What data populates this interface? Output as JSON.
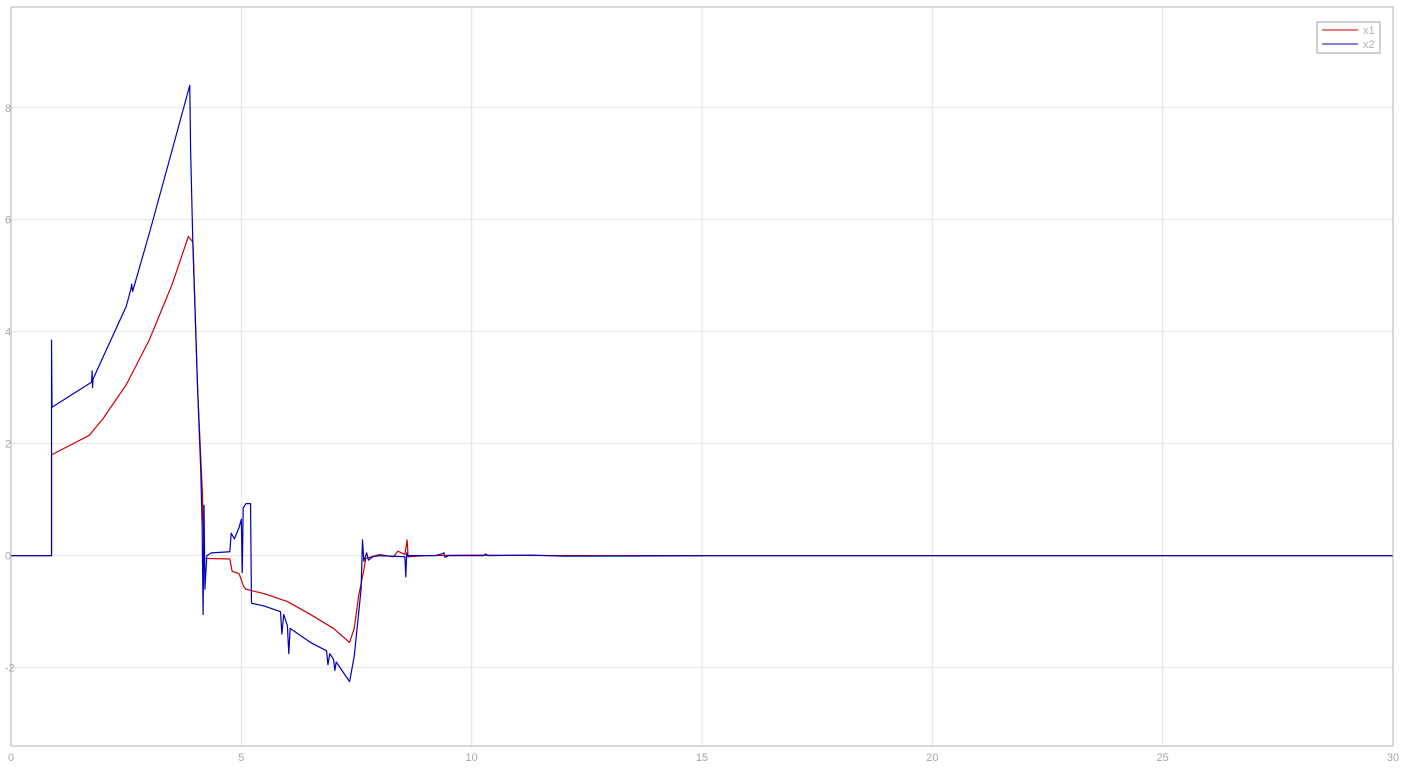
{
  "chart_data": {
    "type": "line",
    "title": "",
    "xlabel": "",
    "ylabel": "",
    "xlim": [
      0,
      30
    ],
    "ylim": [
      -3.4,
      9.8
    ],
    "x_ticks": [
      0,
      5,
      10,
      15,
      20,
      25,
      30
    ],
    "y_ticks": [
      -2,
      0,
      2,
      4,
      6,
      8
    ],
    "x_tick_labels": [
      "0",
      "5",
      "10",
      "15",
      "20",
      "25",
      "30"
    ],
    "y_tick_labels": [
      "-2",
      "0",
      "2",
      "4",
      "6",
      "8"
    ],
    "grid": true,
    "legend_position": "top-right",
    "series": [
      {
        "name": "x1",
        "color": "#cc0000",
        "points": [
          [
            0,
            0
          ],
          [
            0.88,
            0
          ],
          [
            0.88,
            1.8
          ],
          [
            1.7,
            2.15
          ],
          [
            2.0,
            2.45
          ],
          [
            2.5,
            3.05
          ],
          [
            3.0,
            3.85
          ],
          [
            3.5,
            4.85
          ],
          [
            3.85,
            5.7
          ],
          [
            3.95,
            5.6
          ],
          [
            4.05,
            3.0
          ],
          [
            4.15,
            1.2
          ],
          [
            4.2,
            -0.05
          ],
          [
            4.75,
            -0.06
          ],
          [
            4.8,
            -0.28
          ],
          [
            4.95,
            -0.32
          ],
          [
            5.05,
            -0.55
          ],
          [
            5.1,
            -0.6
          ],
          [
            5.5,
            -0.68
          ],
          [
            6.0,
            -0.82
          ],
          [
            6.5,
            -1.05
          ],
          [
            7.0,
            -1.3
          ],
          [
            7.35,
            -1.55
          ],
          [
            7.45,
            -1.3
          ],
          [
            7.55,
            -0.7
          ],
          [
            7.65,
            -0.3
          ],
          [
            7.7,
            -0.05
          ],
          [
            8.0,
            0.02
          ],
          [
            8.3,
            -0.02
          ],
          [
            8.4,
            0.08
          ],
          [
            8.55,
            0.02
          ],
          [
            8.6,
            0.28
          ],
          [
            8.62,
            -0.02
          ],
          [
            9.0,
            0.0
          ],
          [
            10.0,
            0.01
          ],
          [
            12.0,
            0.0
          ],
          [
            13.0,
            0.0
          ],
          [
            30,
            0
          ]
        ]
      },
      {
        "name": "x2",
        "color": "#0000bb",
        "points": [
          [
            0,
            0
          ],
          [
            0.88,
            0
          ],
          [
            0.88,
            3.85
          ],
          [
            0.89,
            2.65
          ],
          [
            1.75,
            3.1
          ],
          [
            1.76,
            3.3
          ],
          [
            1.77,
            3.0
          ],
          [
            1.78,
            3.15
          ],
          [
            2.0,
            3.55
          ],
          [
            2.5,
            4.45
          ],
          [
            2.6,
            4.75
          ],
          [
            2.62,
            4.85
          ],
          [
            2.64,
            4.72
          ],
          [
            3.0,
            5.75
          ],
          [
            3.5,
            7.25
          ],
          [
            3.88,
            8.4
          ],
          [
            3.9,
            7.2
          ],
          [
            3.95,
            5.5
          ],
          [
            4.05,
            3.0
          ],
          [
            4.12,
            1.5
          ],
          [
            4.15,
            0.5
          ],
          [
            4.17,
            -1.05
          ],
          [
            4.19,
            0.9
          ],
          [
            4.21,
            -0.6
          ],
          [
            4.25,
            0.0
          ],
          [
            4.35,
            0.05
          ],
          [
            4.75,
            0.07
          ],
          [
            4.78,
            0.4
          ],
          [
            4.85,
            0.3
          ],
          [
            4.95,
            0.5
          ],
          [
            5.0,
            0.65
          ],
          [
            5.02,
            -0.3
          ],
          [
            5.04,
            0.85
          ],
          [
            5.1,
            0.93
          ],
          [
            5.2,
            0.93
          ],
          [
            5.22,
            -0.85
          ],
          [
            5.5,
            -0.9
          ],
          [
            5.85,
            -1.0
          ],
          [
            5.88,
            -1.4
          ],
          [
            5.92,
            -1.05
          ],
          [
            6.0,
            -1.25
          ],
          [
            6.03,
            -1.75
          ],
          [
            6.06,
            -1.3
          ],
          [
            6.5,
            -1.55
          ],
          [
            6.85,
            -1.7
          ],
          [
            6.88,
            -1.95
          ],
          [
            6.92,
            -1.75
          ],
          [
            7.0,
            -1.85
          ],
          [
            7.03,
            -2.05
          ],
          [
            7.06,
            -1.9
          ],
          [
            7.35,
            -2.25
          ],
          [
            7.45,
            -1.8
          ],
          [
            7.55,
            -1.0
          ],
          [
            7.6,
            -0.6
          ],
          [
            7.63,
            0.28
          ],
          [
            7.66,
            -0.1
          ],
          [
            7.72,
            0.05
          ],
          [
            7.76,
            -0.08
          ],
          [
            7.85,
            -0.02
          ],
          [
            8.0,
            0.0
          ],
          [
            8.55,
            -0.02
          ],
          [
            8.57,
            -0.38
          ],
          [
            8.59,
            0.05
          ],
          [
            8.62,
            -0.02
          ],
          [
            8.65,
            0.0
          ],
          [
            9.2,
            0.0
          ],
          [
            9.35,
            0.03
          ],
          [
            9.4,
            0.05
          ],
          [
            9.42,
            -0.03
          ],
          [
            9.5,
            0.0
          ],
          [
            10.25,
            0.0
          ],
          [
            10.3,
            0.03
          ],
          [
            10.35,
            0.0
          ],
          [
            11.3,
            0.01
          ],
          [
            12.0,
            -0.01
          ],
          [
            15.6,
            0.0
          ],
          [
            30,
            0
          ]
        ]
      }
    ]
  }
}
